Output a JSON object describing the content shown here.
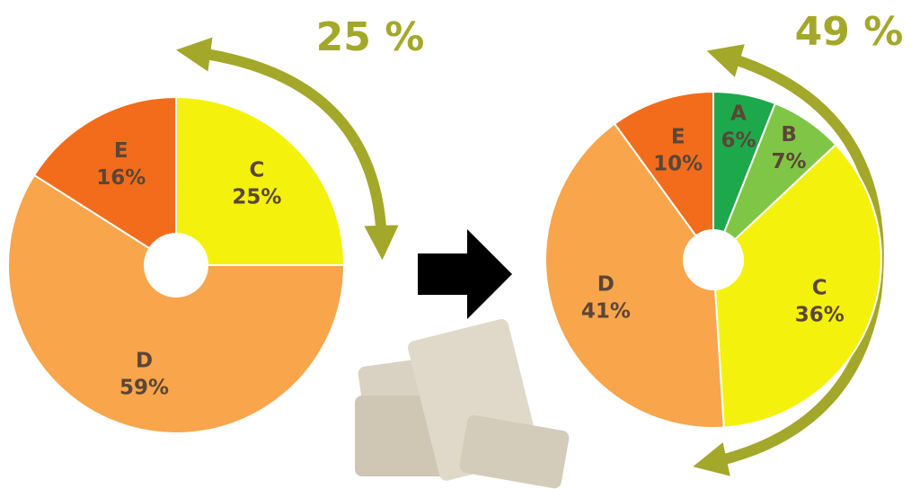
{
  "chart_data": [
    {
      "type": "pie",
      "categories": [
        "C",
        "D",
        "E"
      ],
      "values": [
        25,
        59,
        16
      ],
      "value_labels": [
        "25%",
        "59%",
        "16%"
      ],
      "colors": [
        "#f4f20c",
        "#f8a54c",
        "#f26c1c"
      ],
      "annotation": "25 %"
    },
    {
      "type": "pie",
      "categories": [
        "A",
        "B",
        "C",
        "D",
        "E"
      ],
      "values": [
        6,
        7,
        36,
        41,
        10
      ],
      "value_labels": [
        "6%",
        "7%",
        "36%",
        "41%",
        "10%"
      ],
      "colors": [
        "#1ea84c",
        "#80c646",
        "#f4f20c",
        "#f8a54c",
        "#f26c1c"
      ],
      "annotation": "49 %"
    }
  ]
}
